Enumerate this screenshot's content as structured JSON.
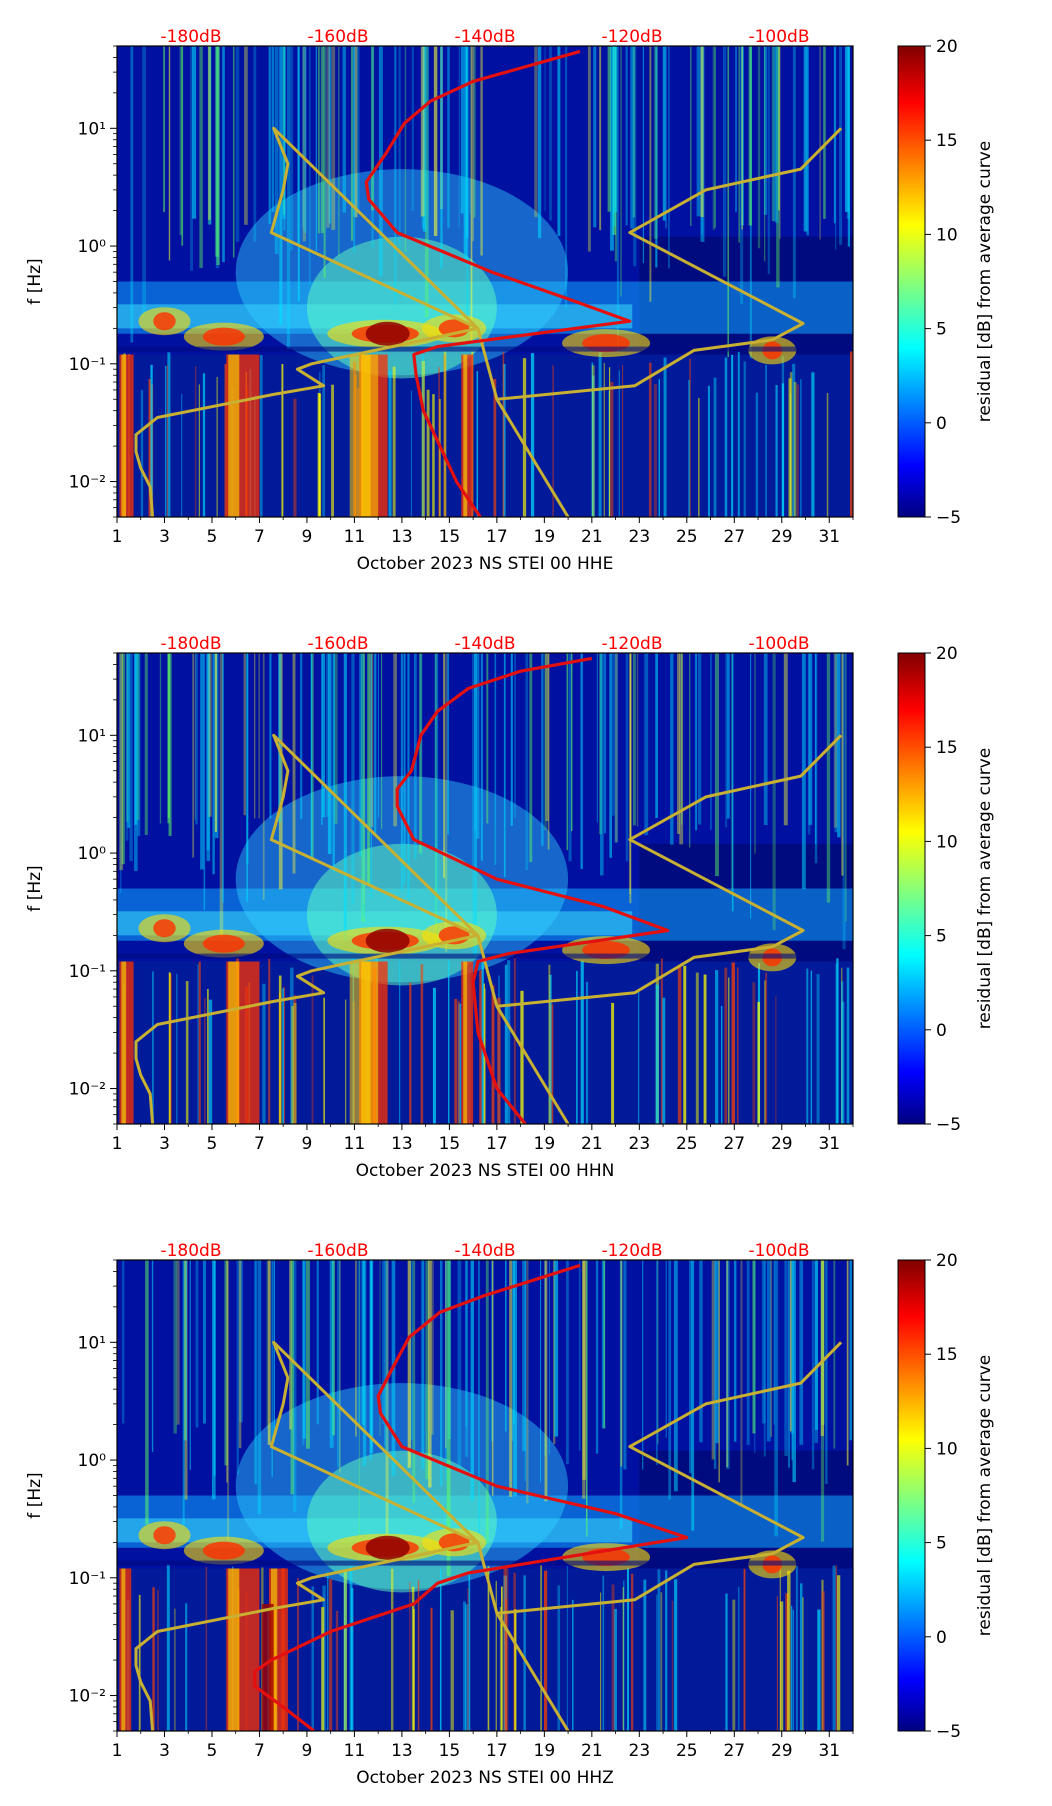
{
  "figure": {
    "colorbar_label": "residual [dB] from average curve",
    "colorbar_ticks": [
      "20",
      "15",
      "10",
      "5",
      "0",
      "−5"
    ],
    "colorbar_colors": [
      "#800000",
      "#ff0000",
      "#ffff00",
      "#00ffff",
      "#0000ff",
      "#000080"
    ]
  },
  "chart_data": [
    {
      "type": "heatmap",
      "title": "",
      "xlabel": "October 2023 NS STEI 00 HHE",
      "ylabel": "f [Hz]",
      "x_ticks": [
        "1",
        "3",
        "5",
        "7",
        "9",
        "11",
        "13",
        "15",
        "17",
        "19",
        "21",
        "23",
        "25",
        "27",
        "29",
        "31"
      ],
      "y_ticks": [
        "10¹",
        "10⁰",
        "10⁻¹",
        "10⁻²"
      ],
      "top_axis_ticks": [
        "-180dB",
        "-160dB",
        "-140dB",
        "-120dB",
        "-100dB"
      ],
      "x_range_days": [
        1,
        32
      ],
      "y_range_hz": [
        0.005,
        50
      ],
      "colorbar_range_db": [
        -5,
        20
      ],
      "reference_curves": {
        "yellow": [
          [
            2.5,
            0.005
          ],
          [
            2.4,
            0.009
          ],
          [
            2.0,
            0.013
          ],
          [
            1.8,
            0.018
          ],
          [
            1.8,
            0.025
          ],
          [
            2.7,
            0.035
          ],
          [
            7.6,
            0.055
          ],
          [
            9.7,
            0.065
          ],
          [
            8.6,
            0.09
          ],
          [
            9.2,
            0.1
          ],
          [
            16.2,
            0.2
          ],
          [
            7.5,
            1.3
          ],
          [
            8.0,
            3.0
          ],
          [
            8.2,
            5.0
          ],
          [
            7.6,
            10
          ],
          [
            16.2,
            0.2
          ],
          [
            17.0,
            0.05
          ],
          [
            20.0,
            0.005
          ],
          [
            17.0,
            0.05
          ],
          [
            22.8,
            0.065
          ],
          [
            25.3,
            0.13
          ],
          [
            28.6,
            0.16
          ],
          [
            29.9,
            0.22
          ],
          [
            22.6,
            1.3
          ],
          [
            25.8,
            3.0
          ],
          [
            29.8,
            4.5
          ],
          [
            31.5,
            10
          ]
        ],
        "red": [
          [
            16.3,
            0.005
          ],
          [
            15.3,
            0.01
          ],
          [
            14.6,
            0.02
          ],
          [
            13.9,
            0.04
          ],
          [
            13.6,
            0.08
          ],
          [
            13.5,
            0.12
          ],
          [
            14.5,
            0.14
          ],
          [
            22.6,
            0.23
          ],
          [
            20.1,
            0.35
          ],
          [
            16.8,
            0.6
          ],
          [
            12.8,
            1.3
          ],
          [
            11.6,
            2.5
          ],
          [
            11.5,
            3.5
          ],
          [
            12.3,
            6.0
          ],
          [
            13.1,
            11
          ],
          [
            14.2,
            17
          ],
          [
            16.0,
            25
          ],
          [
            20.5,
            45
          ]
        ]
      }
    },
    {
      "type": "heatmap",
      "title": "",
      "xlabel": "October 2023 NS STEI 00 HHN",
      "ylabel": "f [Hz]",
      "x_ticks": [
        "1",
        "3",
        "5",
        "7",
        "9",
        "11",
        "13",
        "15",
        "17",
        "19",
        "21",
        "23",
        "25",
        "27",
        "29",
        "31"
      ],
      "y_ticks": [
        "10¹",
        "10⁰",
        "10⁻¹",
        "10⁻²"
      ],
      "top_axis_ticks": [
        "-180dB",
        "-160dB",
        "-140dB",
        "-120dB",
        "-100dB"
      ],
      "x_range_days": [
        1,
        32
      ],
      "y_range_hz": [
        0.005,
        50
      ],
      "colorbar_range_db": [
        -5,
        20
      ],
      "reference_curves": {
        "yellow": [
          [
            2.5,
            0.005
          ],
          [
            2.4,
            0.009
          ],
          [
            2.0,
            0.013
          ],
          [
            1.8,
            0.018
          ],
          [
            1.8,
            0.025
          ],
          [
            2.7,
            0.035
          ],
          [
            7.6,
            0.055
          ],
          [
            9.7,
            0.065
          ],
          [
            8.6,
            0.09
          ],
          [
            9.2,
            0.1
          ],
          [
            16.2,
            0.2
          ],
          [
            7.5,
            1.3
          ],
          [
            8.0,
            3.0
          ],
          [
            8.2,
            5.0
          ],
          [
            7.6,
            10
          ],
          [
            16.2,
            0.2
          ],
          [
            17.0,
            0.05
          ],
          [
            20.0,
            0.005
          ],
          [
            17.0,
            0.05
          ],
          [
            22.8,
            0.065
          ],
          [
            25.3,
            0.13
          ],
          [
            28.6,
            0.16
          ],
          [
            29.9,
            0.22
          ],
          [
            22.6,
            1.3
          ],
          [
            25.8,
            3.0
          ],
          [
            29.8,
            4.5
          ],
          [
            31.5,
            10
          ]
        ],
        "red": [
          [
            18.2,
            0.005
          ],
          [
            17.0,
            0.01
          ],
          [
            16.2,
            0.03
          ],
          [
            16.0,
            0.08
          ],
          [
            16.2,
            0.12
          ],
          [
            17.5,
            0.14
          ],
          [
            24.2,
            0.22
          ],
          [
            21.5,
            0.35
          ],
          [
            17.0,
            0.6
          ],
          [
            13.5,
            1.3
          ],
          [
            12.8,
            2.5
          ],
          [
            12.8,
            3.5
          ],
          [
            13.4,
            5.0
          ],
          [
            13.8,
            10
          ],
          [
            14.5,
            16
          ],
          [
            15.8,
            25
          ],
          [
            18.0,
            35
          ],
          [
            21.0,
            45
          ]
        ]
      }
    },
    {
      "type": "heatmap",
      "title": "",
      "xlabel": "October 2023 NS STEI 00 HHZ",
      "ylabel": "f [Hz]",
      "x_ticks": [
        "1",
        "3",
        "5",
        "7",
        "9",
        "11",
        "13",
        "15",
        "17",
        "19",
        "21",
        "23",
        "25",
        "27",
        "29",
        "31"
      ],
      "y_ticks": [
        "10¹",
        "10⁰",
        "10⁻¹",
        "10⁻²"
      ],
      "top_axis_ticks": [
        "-180dB",
        "-160dB",
        "-140dB",
        "-120dB",
        "-100dB"
      ],
      "x_range_days": [
        1,
        32
      ],
      "y_range_hz": [
        0.005,
        50
      ],
      "colorbar_range_db": [
        -5,
        20
      ],
      "reference_curves": {
        "yellow": [
          [
            2.5,
            0.005
          ],
          [
            2.4,
            0.009
          ],
          [
            2.0,
            0.013
          ],
          [
            1.8,
            0.018
          ],
          [
            1.8,
            0.025
          ],
          [
            2.7,
            0.035
          ],
          [
            7.6,
            0.055
          ],
          [
            9.7,
            0.065
          ],
          [
            8.6,
            0.09
          ],
          [
            9.2,
            0.1
          ],
          [
            16.2,
            0.2
          ],
          [
            7.5,
            1.3
          ],
          [
            8.0,
            3.0
          ],
          [
            8.2,
            5.0
          ],
          [
            7.6,
            10
          ],
          [
            16.2,
            0.2
          ],
          [
            17.0,
            0.05
          ],
          [
            20.0,
            0.005
          ],
          [
            17.0,
            0.05
          ],
          [
            22.8,
            0.065
          ],
          [
            25.3,
            0.13
          ],
          [
            28.6,
            0.16
          ],
          [
            29.9,
            0.22
          ],
          [
            22.6,
            1.3
          ],
          [
            25.8,
            3.0
          ],
          [
            29.8,
            4.5
          ],
          [
            31.5,
            10
          ]
        ],
        "red": [
          [
            9.3,
            0.005
          ],
          [
            8.0,
            0.008
          ],
          [
            6.8,
            0.012
          ],
          [
            6.8,
            0.016
          ],
          [
            7.5,
            0.02
          ],
          [
            10.0,
            0.035
          ],
          [
            13.5,
            0.06
          ],
          [
            14.5,
            0.09
          ],
          [
            15.8,
            0.11
          ],
          [
            25.0,
            0.22
          ],
          [
            22.0,
            0.35
          ],
          [
            17.0,
            0.6
          ],
          [
            13.0,
            1.3
          ],
          [
            12.1,
            2.5
          ],
          [
            12.0,
            3.5
          ],
          [
            12.6,
            6.0
          ],
          [
            13.3,
            11
          ],
          [
            14.6,
            18
          ],
          [
            16.5,
            25
          ],
          [
            20.5,
            45
          ]
        ]
      }
    }
  ]
}
